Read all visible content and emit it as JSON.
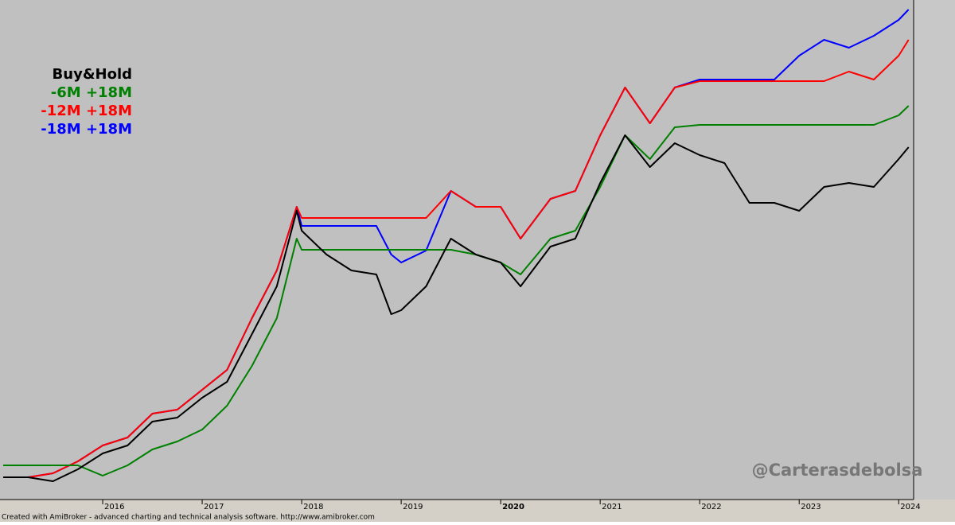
{
  "chart_data": {
    "type": "line",
    "x": [
      2015.0,
      2015.25,
      2015.5,
      2015.75,
      2016.0,
      2016.25,
      2016.5,
      2016.75,
      2017.0,
      2017.25,
      2017.5,
      2017.75,
      2017.95,
      2018.0,
      2018.25,
      2018.5,
      2018.75,
      2018.9,
      2019.0,
      2019.25,
      2019.5,
      2019.75,
      2020.0,
      2020.2,
      2020.5,
      2020.75,
      2021.0,
      2021.25,
      2021.5,
      2021.75,
      2022.0,
      2022.25,
      2022.5,
      2022.75,
      2023.0,
      2023.25,
      2023.5,
      2023.75,
      2024.0,
      2024.1
    ],
    "series": [
      {
        "name": "Buy&Hold",
        "color": "#000000",
        "values": [
          28,
          28,
          23,
          38,
          58,
          68,
          98,
          103,
          128,
          148,
          208,
          268,
          363,
          338,
          308,
          288,
          283,
          233,
          238,
          268,
          328,
          308,
          298,
          268,
          318,
          328,
          398,
          458,
          418,
          448,
          433,
          423,
          373,
          373,
          363,
          393,
          398,
          393,
          428,
          443
        ]
      },
      {
        "name": "-6M +18M",
        "color": "#008000",
        "values": [
          43,
          43,
          43,
          43,
          30,
          43,
          63,
          73,
          88,
          118,
          168,
          228,
          328,
          314,
          314,
          314,
          314,
          314,
          314,
          314,
          314,
          308,
          298,
          283,
          328,
          338,
          393,
          458,
          428,
          468,
          471,
          471,
          471,
          471,
          471,
          471,
          471,
          471,
          483,
          495
        ]
      },
      {
        "name": "-12M +18M",
        "color": "#ff0000",
        "values": [
          28,
          28,
          33,
          48,
          68,
          78,
          108,
          113,
          138,
          163,
          228,
          288,
          368,
          354,
          354,
          354,
          354,
          354,
          354,
          354,
          388,
          368,
          368,
          328,
          378,
          388,
          458,
          518,
          473,
          518,
          526,
          526,
          526,
          526,
          526,
          526,
          538,
          528,
          558,
          578
        ]
      },
      {
        "name": "-18M +18M",
        "color": "#0000ff",
        "values": [
          28,
          28,
          33,
          48,
          68,
          78,
          108,
          113,
          138,
          163,
          228,
          288,
          368,
          344,
          344,
          344,
          344,
          308,
          298,
          313,
          388,
          368,
          368,
          328,
          378,
          388,
          458,
          518,
          473,
          518,
          528,
          528,
          528,
          528,
          558,
          578,
          568,
          583,
          603,
          616
        ]
      }
    ],
    "xlim": [
      2015.0,
      2024.15
    ],
    "xticks": [
      2016,
      2017,
      2018,
      2019,
      2020,
      2021,
      2022,
      2023,
      2024
    ],
    "ylim": [
      0,
      628
    ],
    "watermark": "@Carterasdebolsa",
    "footer": "Created with AmiBroker - advanced charting and technical analysis software. http://www.amibroker.com"
  }
}
